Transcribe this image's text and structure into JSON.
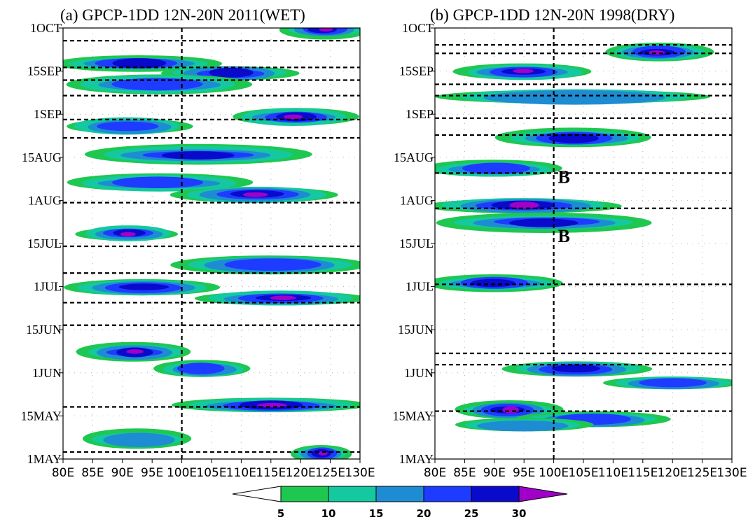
{
  "chart_data": [
    {
      "type": "heatmap",
      "title": "(a) GPCP-1DD 12N-20N 2011(WET)",
      "x_ticks": [
        "80E",
        "85E",
        "90E",
        "95E",
        "100E",
        "105E",
        "110E",
        "115E",
        "120E",
        "125E",
        "130E"
      ],
      "xlim": [
        80,
        130
      ],
      "y_ticks": [
        "1OCT",
        "15SEP",
        "1SEP",
        "15AUG",
        "1AUG",
        "15JUL",
        "1JUL",
        "15JUN",
        "1JUN",
        "15MAY",
        "1MAY"
      ],
      "ylim": [
        "1MAY",
        "1OCT"
      ],
      "reference_longitude": 100,
      "dashed_line_days": [
        2.5,
        18.5,
        47.5,
        55.5,
        66,
        75.5,
        91,
        114,
        120.5,
        129,
        134.5,
        139,
        148.5,
        154
      ],
      "rain_bands": [
        {
          "lon_start": 118,
          "lon_end": 130,
          "day": 152.5,
          "level": 30
        },
        {
          "lon_start": 80,
          "lon_end": 105,
          "day": 140.5,
          "level": 25
        },
        {
          "lon_start": 98,
          "lon_end": 118,
          "day": 137,
          "level": 25
        },
        {
          "lon_start": 82,
          "lon_end": 110,
          "day": 133,
          "level": 20
        },
        {
          "lon_start": 110,
          "lon_end": 128,
          "day": 121.5,
          "level": 30
        },
        {
          "lon_start": 82,
          "lon_end": 100,
          "day": 118,
          "level": 20
        },
        {
          "lon_start": 85,
          "lon_end": 120,
          "day": 108,
          "level": 25
        },
        {
          "lon_start": 82,
          "lon_end": 110,
          "day": 98,
          "level": 20
        },
        {
          "lon_start": 100,
          "lon_end": 125,
          "day": 94,
          "level": 30
        },
        {
          "lon_start": 84,
          "lon_end": 98,
          "day": 80,
          "level": 30
        },
        {
          "lon_start": 100,
          "lon_end": 130,
          "day": 69,
          "level": 20
        },
        {
          "lon_start": 82,
          "lon_end": 105,
          "day": 61,
          "level": 25
        },
        {
          "lon_start": 104,
          "lon_end": 130,
          "day": 57,
          "level": 30
        },
        {
          "lon_start": 84,
          "lon_end": 100,
          "day": 38,
          "level": 30
        },
        {
          "lon_start": 97,
          "lon_end": 110,
          "day": 32,
          "level": 20
        },
        {
          "lon_start": 100,
          "lon_end": 130,
          "day": 19,
          "level": 30
        },
        {
          "lon_start": 85,
          "lon_end": 100,
          "day": 7,
          "level": 15
        },
        {
          "lon_start": 120,
          "lon_end": 127,
          "day": 2,
          "level": 30
        }
      ],
      "annotations": []
    },
    {
      "type": "heatmap",
      "title": "(b) GPCP-1DD 12N-20N 1998(DRY)",
      "x_ticks": [
        "80E",
        "85E",
        "90E",
        "95E",
        "100E",
        "105E",
        "110E",
        "115E",
        "120E",
        "125E",
        "130E"
      ],
      "xlim": [
        80,
        130
      ],
      "y_ticks": [
        "1OCT",
        "15SEP",
        "1SEP",
        "15AUG",
        "1AUG",
        "15JUL",
        "1JUL",
        "15JUN",
        "1JUN",
        "15MAY",
        "1MAY"
      ],
      "ylim": [
        "1MAY",
        "1OCT"
      ],
      "reference_longitude": 100,
      "dashed_line_days": [
        17,
        33.5,
        37.5,
        62,
        89,
        101.5,
        115,
        121,
        129,
        133,
        144,
        147
      ],
      "rain_bands": [
        {
          "lon_start": 110,
          "lon_end": 125,
          "day": 144.5,
          "level": 30
        },
        {
          "lon_start": 85,
          "lon_end": 105,
          "day": 137.5,
          "level": 30
        },
        {
          "lon_start": 82,
          "lon_end": 125,
          "day": 128.5,
          "level": 15
        },
        {
          "lon_start": 92,
          "lon_end": 115,
          "day": 114,
          "level": 25
        },
        {
          "lon_start": 80,
          "lon_end": 100,
          "day": 103,
          "level": 20
        },
        {
          "lon_start": 80,
          "lon_end": 110,
          "day": 90,
          "level": 30
        },
        {
          "lon_start": 82,
          "lon_end": 115,
          "day": 84,
          "level": 25
        },
        {
          "lon_start": 80,
          "lon_end": 100,
          "day": 62.5,
          "level": 25
        },
        {
          "lon_start": 93,
          "lon_end": 115,
          "day": 32,
          "level": 25
        },
        {
          "lon_start": 110,
          "lon_end": 130,
          "day": 27,
          "level": 20
        },
        {
          "lon_start": 85,
          "lon_end": 100,
          "day": 17.5,
          "level": 30
        },
        {
          "lon_start": 95,
          "lon_end": 118,
          "day": 14,
          "level": 20
        },
        {
          "lon_start": 85,
          "lon_end": 105,
          "day": 12,
          "level": 15
        }
      ],
      "annotations": [
        {
          "text": "B",
          "lon": 100.7,
          "day": 98
        },
        {
          "text": "B",
          "lon": 100.7,
          "day": 77
        }
      ]
    }
  ],
  "colorbar": {
    "labels": [
      "5",
      "10",
      "15",
      "20",
      "25",
      "30"
    ],
    "levels": [
      5,
      10,
      15,
      20,
      25,
      30
    ],
    "colors": [
      "#ffffff",
      "#1ec850",
      "#14c8a0",
      "#1e8cd2",
      "#1e3cff",
      "#0a0acd",
      "#a000c8"
    ]
  }
}
